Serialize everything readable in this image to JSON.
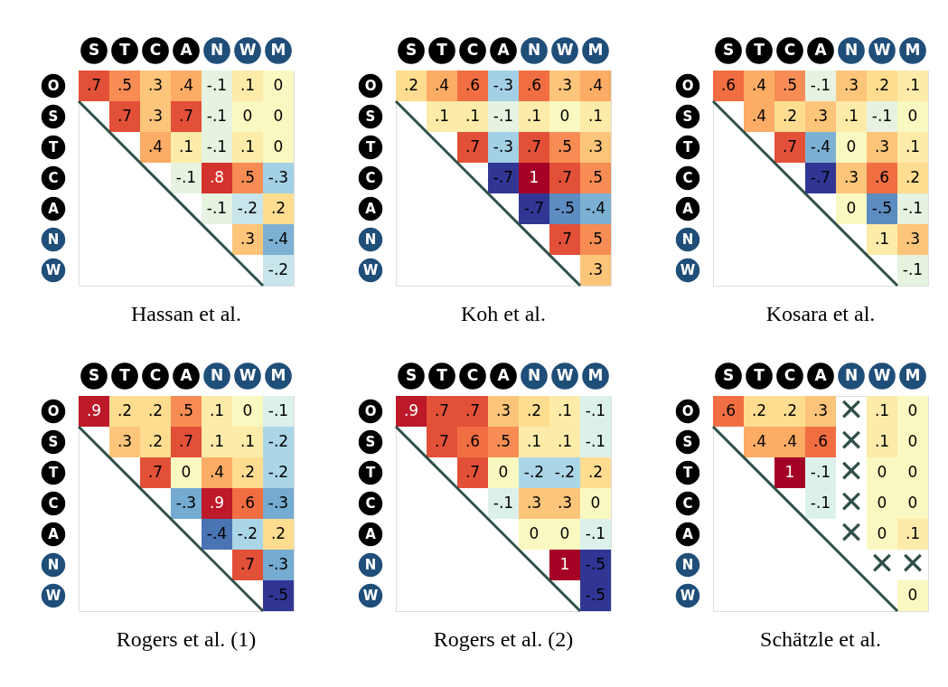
{
  "chart_data": [
    {
      "type": "heatmap",
      "title": "Hassan et al.",
      "categories": [
        "S",
        "T",
        "C",
        "A",
        "N",
        "W",
        "M"
      ],
      "y_categories": [
        "O",
        "S",
        "T",
        "C",
        "A",
        "N",
        "W"
      ],
      "cells": [
        [
          0.7,
          0.5,
          0.3,
          0.4,
          -0.1,
          0.1,
          0
        ],
        [
          null,
          0.7,
          0.3,
          0.7,
          -0.1,
          0,
          0
        ],
        [
          null,
          null,
          0.4,
          0.1,
          -0.1,
          0.1,
          0
        ],
        [
          null,
          null,
          null,
          -0.1,
          0.8,
          0.5,
          -0.3
        ],
        [
          null,
          null,
          null,
          null,
          -0.1,
          -0.2,
          0.2
        ],
        [
          null,
          null,
          null,
          null,
          null,
          0.3,
          -0.4
        ],
        [
          null,
          null,
          null,
          null,
          null,
          null,
          -0.2
        ]
      ],
      "cell_labels": [
        [
          ".7",
          ".5",
          ".3",
          ".4",
          "-.1",
          ".1",
          "0"
        ],
        [
          null,
          ".7",
          ".3",
          ".7",
          "-.1",
          "0",
          "0"
        ],
        [
          null,
          null,
          ".4",
          ".1",
          "-.1",
          ".1",
          "0"
        ],
        [
          null,
          null,
          null,
          "-.1",
          ".8",
          ".5",
          "-.3"
        ],
        [
          null,
          null,
          null,
          null,
          "-.1",
          "-.2",
          ".2"
        ],
        [
          null,
          null,
          null,
          null,
          null,
          ".3",
          "-.4"
        ],
        [
          null,
          null,
          null,
          null,
          null,
          null,
          "-.2"
        ]
      ]
    },
    {
      "type": "heatmap",
      "title": "Koh et al.",
      "categories": [
        "S",
        "T",
        "C",
        "A",
        "N",
        "W",
        "M"
      ],
      "y_categories": [
        "O",
        "S",
        "T",
        "C",
        "A",
        "N",
        "W"
      ],
      "cells": [
        [
          0.2,
          0.4,
          0.6,
          -0.3,
          0.6,
          0.3,
          0.4
        ],
        [
          null,
          0.1,
          0.1,
          -0.1,
          0.1,
          0,
          0.1
        ],
        [
          null,
          null,
          0.7,
          -0.3,
          0.7,
          0.5,
          0.3
        ],
        [
          null,
          null,
          null,
          -0.7,
          1,
          0.7,
          0.5
        ],
        [
          null,
          null,
          null,
          null,
          -0.7,
          -0.5,
          -0.4
        ],
        [
          null,
          null,
          null,
          null,
          null,
          0.7,
          0.5
        ],
        [
          null,
          null,
          null,
          null,
          null,
          null,
          0.3
        ]
      ],
      "cell_labels": [
        [
          ".2",
          ".4",
          ".6",
          "-.3",
          ".6",
          ".3",
          ".4"
        ],
        [
          null,
          ".1",
          ".1",
          "-.1",
          ".1",
          "0",
          ".1"
        ],
        [
          null,
          null,
          ".7",
          "-.3",
          ".7",
          ".5",
          ".3"
        ],
        [
          null,
          null,
          null,
          "-.7",
          "1",
          ".7",
          ".5"
        ],
        [
          null,
          null,
          null,
          null,
          "-.7",
          "-.5",
          "-.4"
        ],
        [
          null,
          null,
          null,
          null,
          null,
          ".7",
          ".5"
        ],
        [
          null,
          null,
          null,
          null,
          null,
          null,
          ".3"
        ]
      ]
    },
    {
      "type": "heatmap",
      "title": "Kosara et al.",
      "categories": [
        "S",
        "T",
        "C",
        "A",
        "N",
        "W",
        "M"
      ],
      "y_categories": [
        "O",
        "S",
        "T",
        "C",
        "A",
        "N",
        "W"
      ],
      "cells": [
        [
          0.6,
          0.4,
          0.5,
          -0.1,
          0.3,
          0.2,
          0.1
        ],
        [
          null,
          0.4,
          0.2,
          0.3,
          0.1,
          -0.1,
          0
        ],
        [
          null,
          null,
          0.7,
          -0.4,
          0,
          0.3,
          0.1
        ],
        [
          null,
          null,
          null,
          -0.7,
          0.3,
          0.6,
          0.2
        ],
        [
          null,
          null,
          null,
          null,
          0,
          -0.5,
          -0.1
        ],
        [
          null,
          null,
          null,
          null,
          null,
          0.1,
          0.3
        ],
        [
          null,
          null,
          null,
          null,
          null,
          null,
          -0.1
        ]
      ],
      "cell_labels": [
        [
          ".6",
          ".4",
          ".5",
          "-.1",
          ".3",
          ".2",
          ".1"
        ],
        [
          null,
          ".4",
          ".2",
          ".3",
          ".1",
          "-.1",
          "0"
        ],
        [
          null,
          null,
          ".7",
          "-.4",
          "0",
          ".3",
          ".1"
        ],
        [
          null,
          null,
          null,
          "-.7",
          ".3",
          ".6",
          ".2"
        ],
        [
          null,
          null,
          null,
          null,
          "0",
          "-.5",
          "-.1"
        ],
        [
          null,
          null,
          null,
          null,
          null,
          ".1",
          ".3"
        ],
        [
          null,
          null,
          null,
          null,
          null,
          null,
          "-.1"
        ]
      ]
    },
    {
      "type": "heatmap",
      "title": "Rogers et al.  (1)",
      "categories": [
        "S",
        "T",
        "C",
        "A",
        "N",
        "W",
        "M"
      ],
      "y_categories": [
        "O",
        "S",
        "T",
        "C",
        "A",
        "N",
        "W"
      ],
      "cells": [
        [
          0.9,
          0.2,
          0.2,
          0.5,
          0.1,
          0,
          -0.1
        ],
        [
          null,
          0.3,
          0.2,
          0.7,
          0.1,
          0.1,
          -0.2
        ],
        [
          null,
          null,
          0.7,
          0,
          0.4,
          0.2,
          -0.2
        ],
        [
          null,
          null,
          null,
          -0.3,
          0.9,
          0.6,
          -0.3
        ],
        [
          null,
          null,
          null,
          null,
          -0.4,
          -0.2,
          0.2
        ],
        [
          null,
          null,
          null,
          null,
          null,
          0.7,
          -0.3
        ],
        [
          null,
          null,
          null,
          null,
          null,
          null,
          -0.5
        ]
      ],
      "cell_labels": [
        [
          ".9",
          ".2",
          ".2",
          ".5",
          ".1",
          "0",
          "-.1"
        ],
        [
          null,
          ".3",
          ".2",
          ".7",
          ".1",
          ".1",
          "-.2"
        ],
        [
          null,
          null,
          ".7",
          "0",
          ".4",
          ".2",
          "-.2"
        ],
        [
          null,
          null,
          null,
          "-.3",
          ".9",
          ".6",
          "-.3"
        ],
        [
          null,
          null,
          null,
          null,
          "-.4",
          "-.2",
          ".2"
        ],
        [
          null,
          null,
          null,
          null,
          null,
          ".7",
          "-.3"
        ],
        [
          null,
          null,
          null,
          null,
          null,
          null,
          "-.5"
        ]
      ]
    },
    {
      "type": "heatmap",
      "title": "Rogers et al.  (2)",
      "categories": [
        "S",
        "T",
        "C",
        "A",
        "N",
        "W",
        "M"
      ],
      "y_categories": [
        "O",
        "S",
        "T",
        "C",
        "A",
        "N",
        "W"
      ],
      "cells": [
        [
          0.9,
          0.7,
          0.7,
          0.3,
          0.2,
          0.1,
          -0.1
        ],
        [
          null,
          0.7,
          0.6,
          0.5,
          0.1,
          0.1,
          -0.1
        ],
        [
          null,
          null,
          0.7,
          0,
          -0.2,
          -0.2,
          0.2
        ],
        [
          null,
          null,
          null,
          -0.1,
          0.3,
          0.3,
          0
        ],
        [
          null,
          null,
          null,
          null,
          0,
          0,
          -0.1
        ],
        [
          null,
          null,
          null,
          null,
          null,
          1,
          -0.5
        ],
        [
          null,
          null,
          null,
          null,
          null,
          null,
          -0.5
        ]
      ],
      "cell_labels": [
        [
          ".9",
          ".7",
          ".7",
          ".3",
          ".2",
          ".1",
          "-.1"
        ],
        [
          null,
          ".7",
          ".6",
          ".5",
          ".1",
          ".1",
          "-.1"
        ],
        [
          null,
          null,
          ".7",
          "0",
          "-.2",
          "-.2",
          ".2"
        ],
        [
          null,
          null,
          null,
          "-.1",
          ".3",
          ".3",
          "0"
        ],
        [
          null,
          null,
          null,
          null,
          "0",
          "0",
          "-.1"
        ],
        [
          null,
          null,
          null,
          null,
          null,
          "1",
          "-.5"
        ],
        [
          null,
          null,
          null,
          null,
          null,
          null,
          "-.5"
        ]
      ]
    },
    {
      "type": "heatmap",
      "title": "Schätzle et al.",
      "categories": [
        "S",
        "T",
        "C",
        "A",
        "N",
        "W",
        "M"
      ],
      "y_categories": [
        "O",
        "S",
        "T",
        "C",
        "A",
        "N",
        "W"
      ],
      "cells": [
        [
          0.6,
          0.2,
          0.2,
          0.3,
          null,
          0.1,
          0
        ],
        [
          null,
          0.4,
          0.4,
          0.6,
          null,
          0.1,
          0
        ],
        [
          null,
          null,
          1,
          -0.1,
          null,
          0,
          0
        ],
        [
          null,
          null,
          null,
          -0.1,
          null,
          0,
          0
        ],
        [
          null,
          null,
          null,
          null,
          null,
          0,
          0.1
        ],
        [
          null,
          null,
          null,
          null,
          null,
          null,
          null
        ],
        [
          null,
          null,
          null,
          null,
          null,
          null,
          0
        ]
      ],
      "cell_labels": [
        [
          ".6",
          ".2",
          ".2",
          ".3",
          "✕",
          ".1",
          "0"
        ],
        [
          null,
          ".4",
          ".4",
          ".6",
          "✕",
          ".1",
          "0"
        ],
        [
          null,
          null,
          "1",
          "-.1",
          "✕",
          "0",
          "0"
        ],
        [
          null,
          null,
          null,
          "-.1",
          "✕",
          "0",
          "0"
        ],
        [
          null,
          null,
          null,
          null,
          "✕",
          "0",
          ".1"
        ],
        [
          null,
          null,
          null,
          null,
          null,
          "✕",
          "✕"
        ],
        [
          null,
          null,
          null,
          null,
          null,
          null,
          "0"
        ]
      ]
    }
  ]
}
